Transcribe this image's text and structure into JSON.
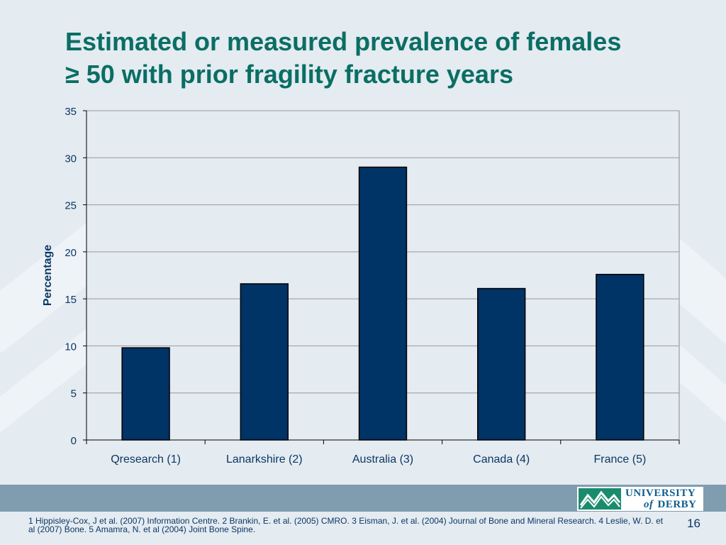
{
  "slide": {
    "title_line1": "Estimated or measured prevalence of females",
    "title_line2": "≥ 50 with prior fragility fracture years",
    "references": "1 Hippisley-Cox, J et al. (2007) Information Centre.  2 Brankin, E. et al. (2005) CMRO. 3 Eisman, J. et al. (2004) Journal of Bone and Mineral Research.  4 Leslie, W. D. et al (2007) Bone.  5 Amamra, N. et al (2004) Joint Bone Spine.",
    "page_number": "16"
  },
  "logo": {
    "line1": "UNIVERSITY",
    "line2_italic": "of",
    "line2": "DERBY",
    "icon": "mountains-logo-icon"
  },
  "colors": {
    "title": "#0a6e64",
    "bar_fill": "#003366",
    "band": "#7f9dae",
    "logo_green": "#1a8c6e",
    "logo_text": "#0e5d8c",
    "background": "#e4ebf1"
  },
  "chart_data": {
    "type": "bar",
    "categories": [
      "Qresearch (1)",
      "Lanarkshire (2)",
      "Australia (3)",
      "Canada (4)",
      "France (5)"
    ],
    "values": [
      9.8,
      16.6,
      29,
      16.1,
      17.6
    ],
    "ylabel": "Percentage",
    "xlabel": "",
    "ylim": [
      0,
      35
    ],
    "yticks": [
      0,
      5,
      10,
      15,
      20,
      25,
      30,
      35
    ],
    "grid": true,
    "legend": "none"
  }
}
